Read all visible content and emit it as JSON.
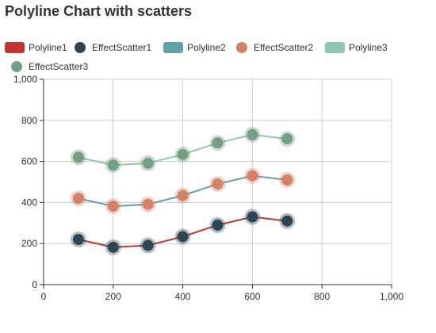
{
  "chart_data": {
    "type": "line",
    "title": "Polyline Chart with scatters",
    "xlim": [
      0,
      1000
    ],
    "ylim": [
      0,
      1000
    ],
    "xticks": [
      0,
      200,
      400,
      600,
      800,
      1000
    ],
    "yticks": [
      0,
      200,
      400,
      600,
      800,
      1000
    ],
    "xtick_labels": [
      "0",
      "200",
      "400",
      "600",
      "800",
      "1,000"
    ],
    "ytick_labels": [
      "0",
      "200",
      "400",
      "600",
      "800",
      "1,000"
    ],
    "grid": true,
    "legend_position": "top-left",
    "x": [
      100,
      200,
      300,
      400,
      500,
      600,
      700
    ],
    "series": [
      {
        "name": "Polyline1",
        "kind": "line",
        "color": "#c23531",
        "values": [
          220,
          182,
          191,
          234,
          290,
          330,
          310
        ]
      },
      {
        "name": "EffectScatter1",
        "kind": "effectScatter",
        "color": "#2f4554",
        "values": [
          220,
          182,
          191,
          234,
          290,
          330,
          310
        ]
      },
      {
        "name": "Polyline2",
        "kind": "line",
        "color": "#61a0a8",
        "values": [
          420,
          382,
          391,
          434,
          490,
          530,
          510
        ]
      },
      {
        "name": "EffectScatter2",
        "kind": "effectScatter",
        "color": "#d48265",
        "values": [
          420,
          382,
          391,
          434,
          490,
          530,
          510
        ]
      },
      {
        "name": "Polyline3",
        "kind": "line",
        "color": "#91c7ae",
        "values": [
          620,
          582,
          591,
          634,
          690,
          730,
          710
        ]
      },
      {
        "name": "EffectScatter3",
        "kind": "effectScatter",
        "color": "#749f83",
        "values": [
          620,
          582,
          591,
          634,
          690,
          730,
          710
        ]
      }
    ]
  }
}
